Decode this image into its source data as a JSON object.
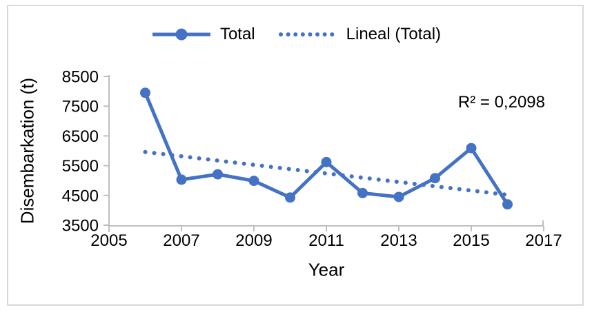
{
  "figure": {
    "background": "#ffffff",
    "border_color": "#d9d9d9"
  },
  "legend": {
    "position": "top-center",
    "items": [
      {
        "label": "Total",
        "sample": "solid-line-with-circle-marker"
      },
      {
        "label": "Lineal (Total)",
        "sample": "dotted-line"
      }
    ]
  },
  "annotation": {
    "r_squared_label": "R² = 0,2098"
  },
  "chart_data": {
    "type": "line",
    "title": "",
    "xlabel": "Year",
    "ylabel": "Disembarkation (t)",
    "x": [
      2006,
      2007,
      2008,
      2009,
      2010,
      2011,
      2012,
      2013,
      2014,
      2015,
      2016
    ],
    "series": [
      {
        "name": "Total",
        "values": [
          7950,
          5030,
          5210,
          4990,
          4430,
          5620,
          4580,
          4450,
          5080,
          6090,
          4200
        ]
      }
    ],
    "trendline": {
      "name": "Lineal (Total)",
      "style": "dotted",
      "x": [
        2006,
        2016
      ],
      "y": [
        5960,
        4520
      ],
      "r_squared": "0,2098"
    },
    "xlim": [
      2005,
      2017
    ],
    "ylim": [
      3500,
      8500
    ],
    "x_ticks": [
      2005,
      2007,
      2009,
      2011,
      2013,
      2015,
      2017
    ],
    "y_ticks": [
      3500,
      4500,
      5500,
      6500,
      7500,
      8500
    ],
    "grid": false,
    "legend_position": "top",
    "colors": {
      "series": "#4472c4",
      "axis": "#bfbfbf",
      "text": "#000000"
    }
  }
}
